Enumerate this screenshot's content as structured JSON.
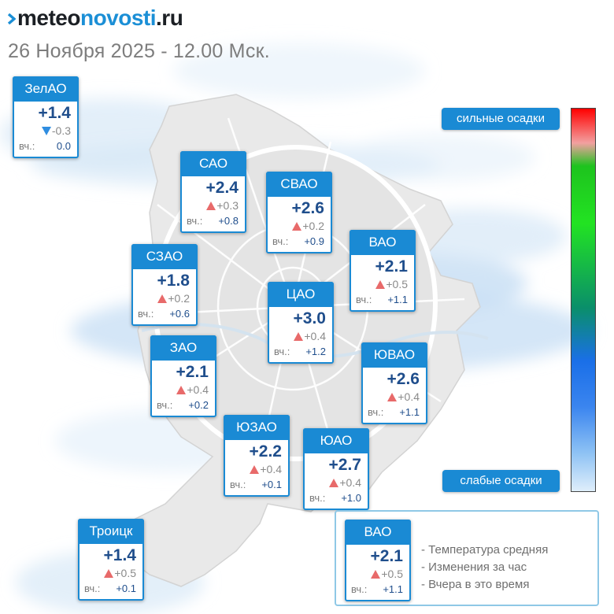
{
  "header": {
    "logo_part1": "meteo",
    "logo_part2": "novosti",
    "logo_part3": ".ru",
    "subtitle": "26 Ноября 2025 - 12.00 Мск."
  },
  "colors": {
    "accent": "#1a8ad4",
    "temp_text": "#1f4e8c",
    "rise": "#e86a6a",
    "fall": "#2f8de0"
  },
  "yesterday_prefix": "вч.:",
  "districts": [
    {
      "id": "zelao",
      "name": "ЗелАО",
      "temp": "+1.4",
      "change": "-0.3",
      "trend": "down",
      "yesterday": "0.0"
    },
    {
      "id": "sao",
      "name": "САО",
      "temp": "+2.4",
      "change": "+0.3",
      "trend": "up",
      "yesterday": "+0.8"
    },
    {
      "id": "svao",
      "name": "СВАО",
      "temp": "+2.6",
      "change": "+0.2",
      "trend": "up",
      "yesterday": "+0.9"
    },
    {
      "id": "vao",
      "name": "ВАО",
      "temp": "+2.1",
      "change": "+0.5",
      "trend": "up",
      "yesterday": "+1.1"
    },
    {
      "id": "szao",
      "name": "СЗАО",
      "temp": "+1.8",
      "change": "+0.2",
      "trend": "up",
      "yesterday": "+0.6"
    },
    {
      "id": "cao",
      "name": "ЦАО",
      "temp": "+3.0",
      "change": "+0.4",
      "trend": "up",
      "yesterday": "+1.2"
    },
    {
      "id": "zao",
      "name": "ЗАО",
      "temp": "+2.1",
      "change": "+0.4",
      "trend": "up",
      "yesterday": "+0.2"
    },
    {
      "id": "yuvao",
      "name": "ЮВАО",
      "temp": "+2.6",
      "change": "+0.4",
      "trend": "up",
      "yesterday": "+1.1"
    },
    {
      "id": "yuzao",
      "name": "ЮЗАО",
      "temp": "+2.2",
      "change": "+0.4",
      "trend": "up",
      "yesterday": "+0.1"
    },
    {
      "id": "yuao",
      "name": "ЮАО",
      "temp": "+2.7",
      "change": "+0.4",
      "trend": "up",
      "yesterday": "+1.0"
    },
    {
      "id": "troick",
      "name": "Троицк",
      "temp": "+1.4",
      "change": "+0.5",
      "trend": "up",
      "yesterday": "+0.1"
    }
  ],
  "scale": {
    "top_label": "сильные осадки",
    "bottom_label": "слабые осадки"
  },
  "legend": {
    "sample_name": "ВАО",
    "sample_temp": "+2.1",
    "sample_change": "+0.5",
    "sample_trend": "up",
    "sample_yesterday": "+1.1",
    "line1": "- Температура средняя",
    "line2": "- Изменения за час",
    "line3": "- Вчера в это время"
  }
}
